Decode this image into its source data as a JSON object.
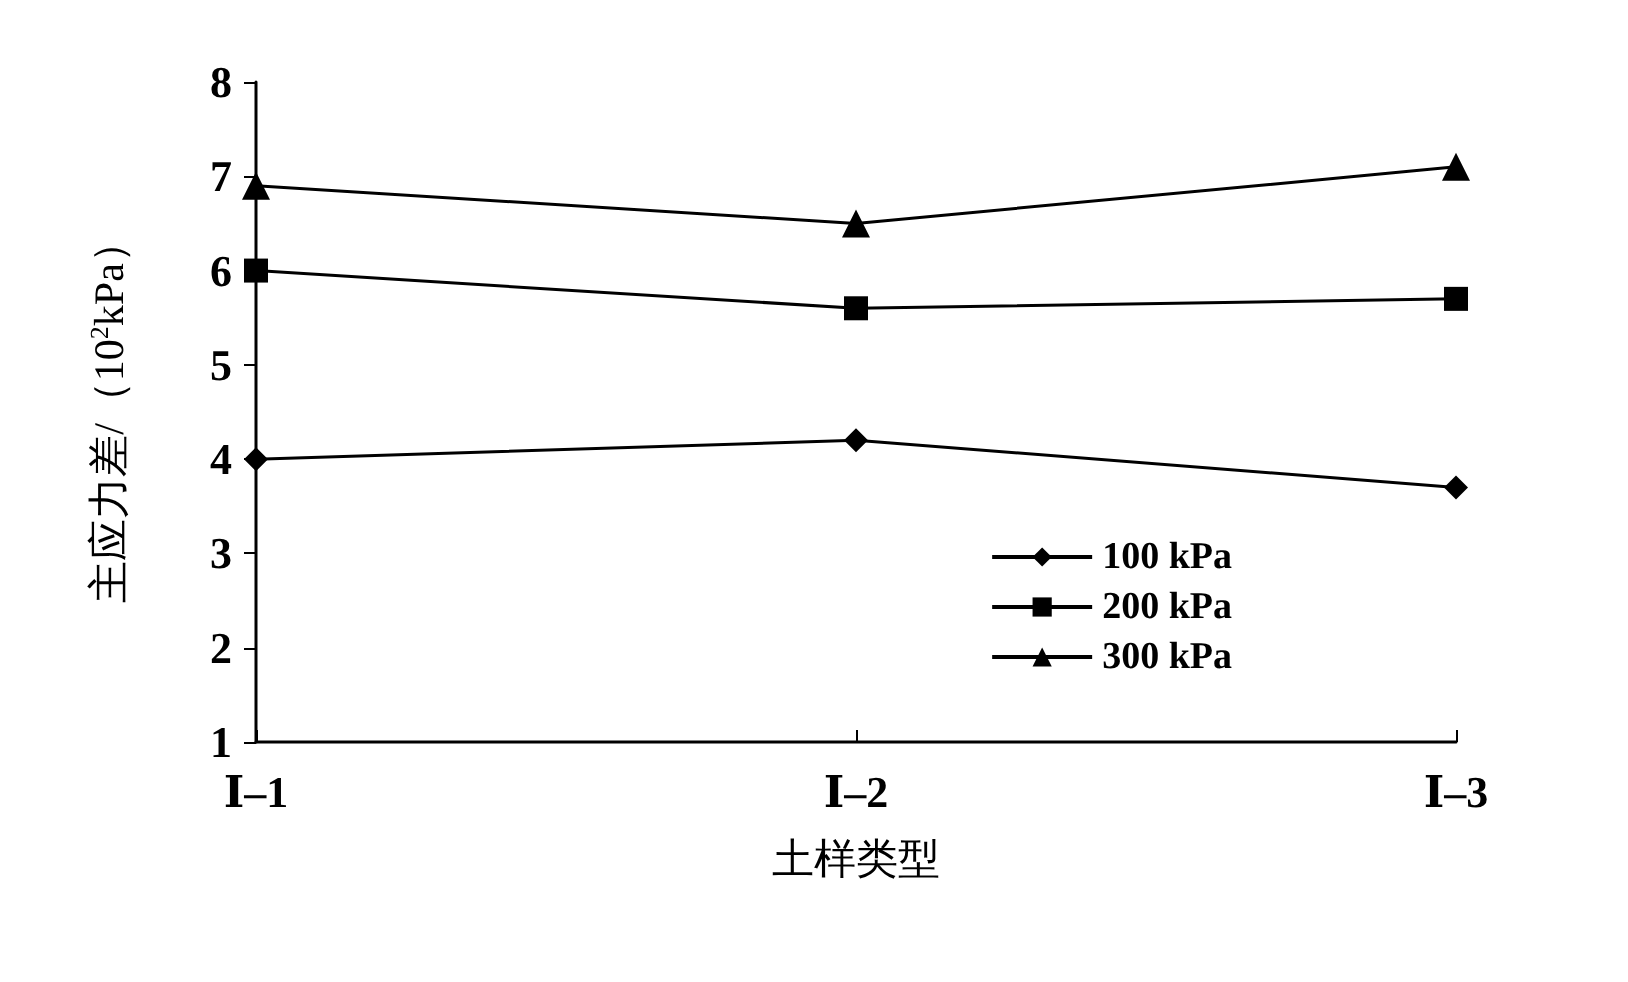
{
  "chart_data": {
    "type": "line",
    "xlabel": "土样类型",
    "ylabel": "主应力差/（10$^{2}$kPa）",
    "categories": [
      "Ⅰ–1",
      "Ⅰ–2",
      "Ⅰ–3"
    ],
    "series": [
      {
        "name": "100 kPa",
        "color": "#000000",
        "marker": "diamond",
        "values": [
          4.0,
          4.2,
          3.7
        ]
      },
      {
        "name": "200 kPa",
        "color": "#000000",
        "marker": "square",
        "values": [
          6.0,
          5.6,
          5.7
        ]
      },
      {
        "name": "300 kPa",
        "color": "#000000",
        "marker": "triangle",
        "values": [
          6.9,
          6.5,
          7.1
        ]
      }
    ],
    "ylim": [
      1,
      8
    ],
    "yticks": [
      1,
      2,
      3,
      4,
      5,
      6,
      7,
      8
    ],
    "grid": false,
    "legend": "bottom right",
    "line_style": "solid"
  }
}
